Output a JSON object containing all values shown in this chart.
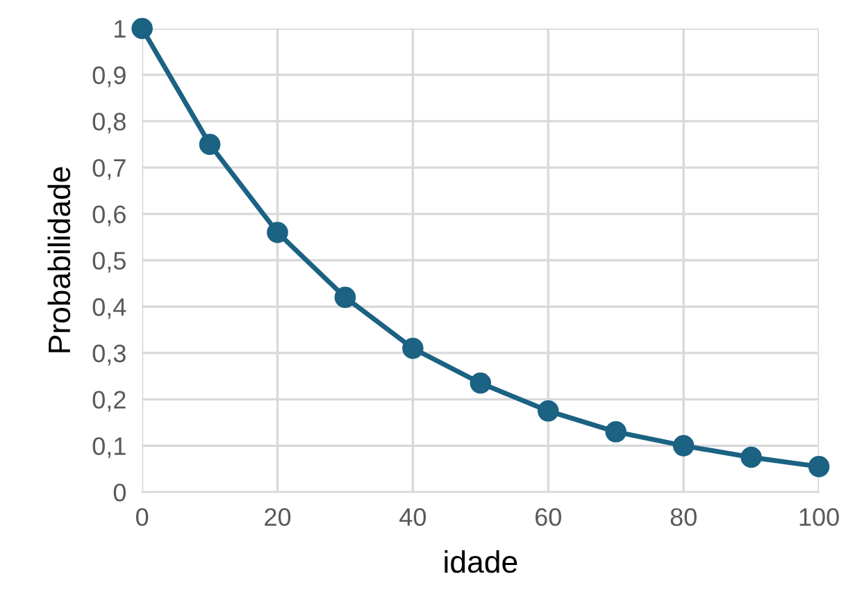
{
  "chart_data": {
    "type": "line",
    "xlabel": "idade",
    "ylabel": "Probabilidade",
    "x": [
      0,
      10,
      20,
      30,
      40,
      50,
      60,
      70,
      80,
      90,
      100
    ],
    "series": [
      {
        "color": "#1b6283",
        "values": [
          1,
          0.75,
          0.56,
          0.42,
          0.31,
          0.235,
          0.175,
          0.13,
          0.1,
          0.075,
          0.055
        ]
      }
    ],
    "xlim": [
      0,
      100
    ],
    "xticks": [
      0,
      20,
      40,
      60,
      80,
      100
    ],
    "ylim": [
      0,
      1
    ],
    "yticks": [
      0,
      {
        "value": 0.1,
        "label": "0,1"
      },
      {
        "value": 0.2,
        "label": "0,2"
      },
      {
        "value": 0.3,
        "label": "0,3"
      },
      {
        "value": 0.4,
        "label": "0,4"
      },
      {
        "value": 0.5,
        "label": "0,5"
      },
      {
        "value": 0.6,
        "label": "0,6"
      },
      {
        "value": 0.7,
        "label": "0,7"
      },
      {
        "value": 0.8,
        "label": "0,8"
      },
      {
        "value": 0.9,
        "label": "0,9"
      },
      1
    ],
    "grid": true,
    "marker": "circle",
    "line_style": "solid",
    "legend": false
  }
}
